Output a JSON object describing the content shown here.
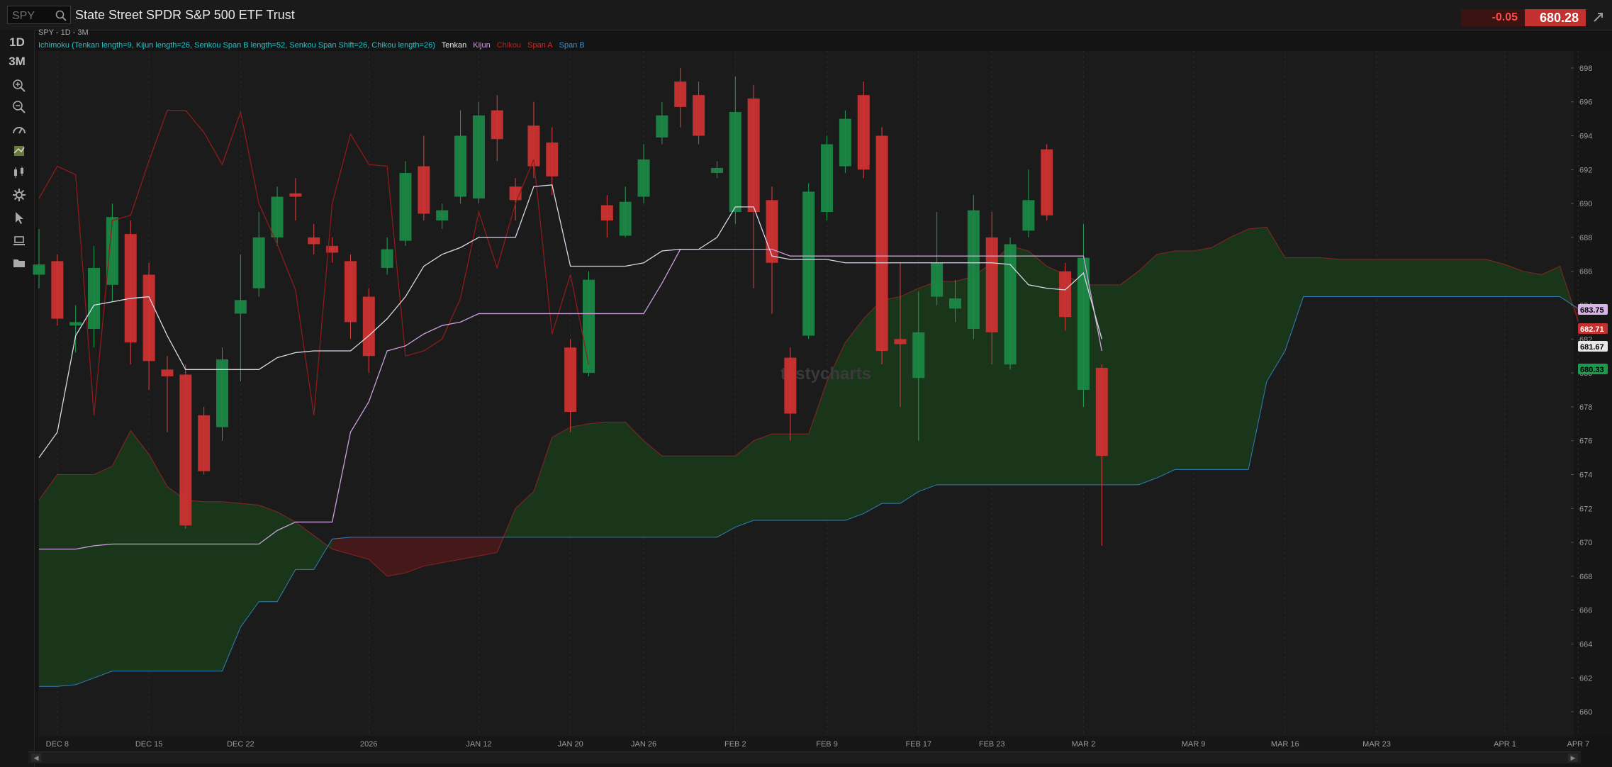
{
  "header": {
    "search_placeholder": "SPY",
    "title": "State Street SPDR S&P 500 ETF Trust",
    "change": "-0.05",
    "price": "680.28"
  },
  "sidebar": {
    "timeframes": [
      "1D",
      "3M"
    ],
    "icons": [
      "zoom-in-icon",
      "zoom-out-icon",
      "drawing-tools-icon",
      "studies-icon",
      "chart-style-icon",
      "settings-icon",
      "cursor-icon",
      "layers-icon",
      "folder-icon"
    ]
  },
  "chart_meta": "SPY - 1D - 3M",
  "legend": {
    "study": "Ichimoku (Tenkan length=9, Kijun length=26, Senkou Span B length=52, Senkou Span Shift=26, Chikou length=26)",
    "items": [
      {
        "label": "Tenkan",
        "color": "#e8e8e8"
      },
      {
        "label": "Kijun",
        "color": "#c9a0dc"
      },
      {
        "label": "Chikou",
        "color": "#b02222"
      },
      {
        "label": "Span A",
        "color": "#c03030"
      },
      {
        "label": "Span B",
        "color": "#3a8fd0"
      }
    ]
  },
  "watermark": "tastycharts",
  "price_tags": [
    {
      "value": "683.75",
      "bg": "#d9b3e8",
      "fg": "#000000"
    },
    {
      "value": "682.71",
      "bg": "#c4302e",
      "fg": "#ffffff"
    },
    {
      "value": "681.67",
      "bg": "#e8e8e8",
      "fg": "#000000"
    },
    {
      "value": "680.33",
      "bg": "#1a9a4a",
      "fg": "#000000"
    }
  ],
  "colors": {
    "up": "#1a8a45",
    "down": "#d03232",
    "cloud_bull": "#1b3a1b",
    "cloud_bear": "#4a1a1a"
  },
  "chart_data": {
    "type": "candlestick",
    "ylim": [
      659,
      699
    ],
    "y_ticks": [
      660,
      662,
      664,
      666,
      668,
      670,
      672,
      674,
      676,
      678,
      680,
      682,
      684,
      686,
      688,
      690,
      692,
      694,
      696,
      698
    ],
    "x_ticks": [
      {
        "label": "DEC 8",
        "i": 1
      },
      {
        "label": "DEC 15",
        "i": 6
      },
      {
        "label": "DEC 22",
        "i": 11
      },
      {
        "label": "2026",
        "i": 18
      },
      {
        "label": "JAN 12",
        "i": 24
      },
      {
        "label": "JAN 20",
        "i": 29
      },
      {
        "label": "JAN 26",
        "i": 33
      },
      {
        "label": "FEB 2",
        "i": 38
      },
      {
        "label": "FEB 9",
        "i": 43
      },
      {
        "label": "FEB 17",
        "i": 48
      },
      {
        "label": "FEB 23",
        "i": 52
      },
      {
        "label": "MAR 2",
        "i": 57
      },
      {
        "label": "MAR 9",
        "i": 63
      },
      {
        "label": "MAR 16",
        "i": 68
      },
      {
        "label": "MAR 23",
        "i": 73
      },
      {
        "label": "APR 1",
        "i": 80
      },
      {
        "label": "APR 7",
        "i": 84
      }
    ],
    "candles": [
      [
        685.8,
        686.4,
        688.5,
        685.0
      ],
      [
        686.6,
        683.2,
        687.0,
        682.8
      ],
      [
        682.8,
        683.0,
        684.0,
        681.2
      ],
      [
        682.6,
        686.2,
        687.5,
        681.5
      ],
      [
        685.2,
        689.2,
        690.0,
        684.2
      ],
      [
        688.2,
        681.8,
        689.0,
        680.5
      ],
      [
        685.8,
        680.7,
        686.5,
        679.0
      ],
      [
        680.2,
        679.8,
        681.0,
        676.5
      ],
      [
        679.9,
        671.0,
        680.5,
        670.8
      ],
      [
        677.5,
        674.2,
        678.0,
        674.0
      ],
      [
        676.8,
        680.8,
        681.5,
        676.0
      ],
      [
        683.5,
        684.3,
        687.0,
        679.5
      ],
      [
        685.0,
        688.0,
        689.5,
        684.5
      ],
      [
        688.0,
        690.4,
        691.0,
        687.5
      ],
      [
        690.6,
        690.4,
        691.5,
        689.0
      ],
      [
        688.0,
        687.6,
        688.8,
        687.0
      ],
      [
        687.5,
        687.1,
        688.0,
        686.5
      ],
      [
        686.6,
        683.0,
        687.0,
        682.0
      ],
      [
        684.5,
        681.0,
        685.0,
        680.0
      ],
      [
        686.2,
        687.3,
        688.0,
        685.8
      ],
      [
        687.8,
        691.8,
        692.5,
        687.5
      ],
      [
        692.2,
        689.4,
        694.0,
        689.0
      ],
      [
        689.0,
        689.6,
        690.0,
        688.5
      ],
      [
        690.4,
        694.0,
        695.5,
        690.0
      ],
      [
        690.3,
        695.2,
        696.0,
        690.0
      ],
      [
        695.5,
        693.8,
        696.4,
        692.5
      ],
      [
        691.0,
        690.2,
        691.5,
        689.0
      ],
      [
        694.6,
        692.2,
        696.0,
        691.5
      ],
      [
        693.6,
        691.6,
        694.5,
        690.5
      ],
      [
        681.5,
        677.7,
        682.0,
        676.5
      ],
      [
        680.0,
        685.5,
        686.0,
        679.8
      ],
      [
        689.9,
        689.0,
        690.5,
        688.0
      ],
      [
        688.1,
        690.1,
        691.0,
        688.0
      ],
      [
        690.4,
        692.6,
        693.5,
        690.0
      ],
      [
        693.9,
        695.2,
        696.0,
        693.5
      ],
      [
        697.2,
        695.7,
        698.0,
        694.5
      ],
      [
        696.4,
        694.0,
        697.2,
        693.5
      ],
      [
        691.8,
        692.1,
        692.5,
        691.5
      ],
      [
        689.5,
        695.4,
        697.5,
        688.8
      ],
      [
        696.2,
        689.5,
        697.0,
        685.0
      ],
      [
        690.2,
        686.5,
        691.0,
        683.5
      ],
      [
        680.9,
        677.6,
        681.5,
        676.0
      ],
      [
        682.2,
        690.7,
        691.2,
        682.0
      ],
      [
        689.5,
        693.5,
        694.0,
        689.0
      ],
      [
        692.2,
        695.0,
        695.5,
        691.8
      ],
      [
        696.4,
        692.0,
        697.2,
        691.5
      ],
      [
        694.0,
        681.3,
        694.5,
        680.5
      ],
      [
        682.0,
        681.7,
        686.5,
        678.0
      ],
      [
        679.7,
        682.4,
        684.8,
        676.0
      ],
      [
        684.5,
        686.5,
        689.5,
        684.0
      ],
      [
        683.8,
        684.4,
        685.5,
        683.0
      ],
      [
        682.6,
        689.6,
        690.5,
        682.0
      ],
      [
        688.0,
        682.4,
        689.5,
        680.5
      ],
      [
        680.5,
        687.6,
        688.0,
        680.2
      ],
      [
        688.4,
        690.2,
        692.0,
        688.0
      ],
      [
        693.2,
        689.3,
        693.5,
        689.0
      ],
      [
        686.0,
        683.3,
        686.5,
        682.5
      ],
      [
        679.0,
        686.8,
        688.8,
        678.0
      ],
      [
        680.3,
        675.1,
        680.5,
        669.8
      ]
    ],
    "tenkan": [
      [
        0,
        675
      ],
      [
        1,
        676.5
      ],
      [
        2,
        682.2
      ],
      [
        3,
        684.0
      ],
      [
        4,
        684.2
      ],
      [
        5,
        684.4
      ],
      [
        6,
        684.5
      ],
      [
        7,
        682.2
      ],
      [
        8,
        680.2
      ],
      [
        12,
        680.2
      ],
      [
        13,
        680.9
      ],
      [
        14,
        681.2
      ],
      [
        15,
        681.3
      ],
      [
        16,
        681.3
      ],
      [
        17,
        681.3
      ],
      [
        18,
        682.2
      ],
      [
        19,
        683.2
      ],
      [
        20,
        684.5
      ],
      [
        21,
        686.3
      ],
      [
        22,
        687.0
      ],
      [
        23,
        687.4
      ],
      [
        24,
        688.0
      ],
      [
        25,
        688.0
      ],
      [
        26,
        688.0
      ],
      [
        27,
        691.0
      ],
      [
        28,
        691.1
      ],
      [
        29,
        686.3
      ],
      [
        30,
        686.3
      ],
      [
        31,
        686.3
      ],
      [
        32,
        686.3
      ],
      [
        33,
        686.5
      ],
      [
        34,
        687.2
      ],
      [
        35,
        687.3
      ],
      [
        36,
        687.3
      ],
      [
        37,
        688.0
      ],
      [
        38,
        689.8
      ],
      [
        39,
        689.8
      ],
      [
        40,
        686.9
      ],
      [
        41,
        686.7
      ],
      [
        42,
        686.7
      ],
      [
        43,
        686.7
      ],
      [
        44,
        686.5
      ],
      [
        45,
        686.5
      ],
      [
        46,
        686.5
      ],
      [
        47,
        686.5
      ],
      [
        48,
        686.5
      ],
      [
        49,
        686.5
      ],
      [
        50,
        686.5
      ],
      [
        51,
        686.5
      ],
      [
        52,
        686.5
      ],
      [
        53,
        686.4
      ],
      [
        54,
        685.2
      ],
      [
        55,
        685.0
      ],
      [
        56,
        684.9
      ],
      [
        57,
        685.9
      ],
      [
        58,
        682.0
      ]
    ],
    "kijun": [
      [
        0,
        669.6
      ],
      [
        1,
        669.6
      ],
      [
        2,
        669.6
      ],
      [
        3,
        669.8
      ],
      [
        4,
        669.9
      ],
      [
        5,
        669.9
      ],
      [
        8,
        669.9
      ],
      [
        12,
        669.9
      ],
      [
        13,
        670.7
      ],
      [
        14,
        671.2
      ],
      [
        15,
        671.2
      ],
      [
        16,
        671.2
      ],
      [
        17,
        676.5
      ],
      [
        18,
        678.3
      ],
      [
        19,
        681.3
      ],
      [
        20,
        681.6
      ],
      [
        21,
        682.3
      ],
      [
        22,
        682.8
      ],
      [
        23,
        683.0
      ],
      [
        24,
        683.5
      ],
      [
        25,
        683.5
      ],
      [
        30,
        683.5
      ],
      [
        33,
        683.5
      ],
      [
        34,
        685.3
      ],
      [
        35,
        687.3
      ],
      [
        40,
        687.3
      ],
      [
        41,
        686.9
      ],
      [
        56,
        686.9
      ],
      [
        57,
        686.9
      ],
      [
        58,
        681.3
      ]
    ],
    "chikou": [
      [
        0,
        690.3
      ],
      [
        1,
        692.2
      ],
      [
        2,
        691.7
      ],
      [
        3,
        677.5
      ],
      [
        4,
        689.0
      ],
      [
        5,
        689.3
      ],
      [
        6,
        692.5
      ],
      [
        7,
        695.5
      ],
      [
        8,
        695.5
      ],
      [
        9,
        694.2
      ],
      [
        10,
        692.3
      ],
      [
        11,
        695.4
      ],
      [
        12,
        690.0
      ],
      [
        13,
        687.6
      ],
      [
        14,
        684.9
      ],
      [
        15,
        677.5
      ],
      [
        16,
        690.0
      ],
      [
        17,
        694.1
      ],
      [
        18,
        692.3
      ],
      [
        19,
        692.2
      ],
      [
        20,
        681.0
      ],
      [
        21,
        681.3
      ],
      [
        22,
        682.0
      ],
      [
        23,
        684.4
      ],
      [
        24,
        689.5
      ],
      [
        25,
        686.2
      ],
      [
        26,
        690.0
      ],
      [
        27,
        692.6
      ],
      [
        28,
        682.3
      ],
      [
        29,
        685.8
      ],
      [
        30,
        680.5
      ]
    ],
    "span_a": [
      [
        0,
        672.5
      ],
      [
        1,
        674.0
      ],
      [
        2,
        674.0
      ],
      [
        3,
        674.0
      ],
      [
        4,
        674.5
      ],
      [
        5,
        676.6
      ],
      [
        6,
        675.2
      ],
      [
        7,
        673.3
      ],
      [
        8,
        672.5
      ],
      [
        9,
        672.4
      ],
      [
        10,
        672.4
      ],
      [
        11,
        672.3
      ],
      [
        12,
        672.2
      ],
      [
        13,
        671.8
      ],
      [
        14,
        671.2
      ],
      [
        15,
        670.4
      ],
      [
        16,
        669.6
      ],
      [
        17,
        669.3
      ],
      [
        18,
        669.0
      ],
      [
        19,
        668.0
      ],
      [
        20,
        668.2
      ],
      [
        21,
        668.6
      ],
      [
        22,
        668.8
      ],
      [
        23,
        669.0
      ],
      [
        24,
        669.2
      ],
      [
        25,
        669.4
      ],
      [
        26,
        672.0
      ],
      [
        27,
        673.0
      ],
      [
        28,
        676.2
      ],
      [
        29,
        676.8
      ],
      [
        30,
        677.0
      ],
      [
        31,
        677.1
      ],
      [
        32,
        677.1
      ],
      [
        33,
        676.0
      ],
      [
        34,
        675.1
      ],
      [
        35,
        675.1
      ],
      [
        36,
        675.1
      ],
      [
        37,
        675.1
      ],
      [
        38,
        675.1
      ],
      [
        39,
        676.0
      ],
      [
        40,
        676.4
      ],
      [
        41,
        676.4
      ],
      [
        42,
        676.4
      ],
      [
        43,
        679.5
      ],
      [
        44,
        681.8
      ],
      [
        45,
        683.2
      ],
      [
        46,
        684.3
      ],
      [
        47,
        684.5
      ],
      [
        48,
        685.0
      ],
      [
        49,
        685.4
      ],
      [
        50,
        685.4
      ],
      [
        51,
        685.7
      ],
      [
        52,
        686.5
      ],
      [
        53,
        687.5
      ],
      [
        54,
        687.2
      ],
      [
        55,
        686.3
      ],
      [
        56,
        685.8
      ],
      [
        57,
        685.2
      ],
      [
        58,
        685.2
      ],
      [
        59,
        685.2
      ],
      [
        60,
        686.0
      ],
      [
        61,
        687.0
      ],
      [
        62,
        687.2
      ],
      [
        63,
        687.2
      ],
      [
        64,
        687.4
      ],
      [
        65,
        688.0
      ],
      [
        66,
        688.5
      ],
      [
        67,
        688.6
      ],
      [
        68,
        686.8
      ],
      [
        69,
        686.8
      ],
      [
        70,
        686.8
      ],
      [
        71,
        686.7
      ],
      [
        78,
        686.7
      ],
      [
        79,
        686.7
      ],
      [
        80,
        686.4
      ],
      [
        81,
        686.0
      ],
      [
        82,
        685.8
      ],
      [
        83,
        686.3
      ],
      [
        84,
        683.0
      ]
    ],
    "span_b": [
      [
        0,
        661.5
      ],
      [
        1,
        661.5
      ],
      [
        2,
        661.6
      ],
      [
        3,
        662.0
      ],
      [
        4,
        662.4
      ],
      [
        5,
        662.4
      ],
      [
        10,
        662.4
      ],
      [
        11,
        665.0
      ],
      [
        12,
        666.5
      ],
      [
        13,
        666.5
      ],
      [
        14,
        668.4
      ],
      [
        15,
        668.4
      ],
      [
        16,
        670.2
      ],
      [
        17,
        670.3
      ],
      [
        18,
        670.3
      ],
      [
        37,
        670.3
      ],
      [
        38,
        670.9
      ],
      [
        39,
        671.3
      ],
      [
        40,
        671.3
      ],
      [
        41,
        671.3
      ],
      [
        42,
        671.3
      ],
      [
        43,
        671.3
      ],
      [
        44,
        671.3
      ],
      [
        45,
        671.7
      ],
      [
        46,
        672.3
      ],
      [
        47,
        672.3
      ],
      [
        48,
        673.0
      ],
      [
        49,
        673.4
      ],
      [
        50,
        673.4
      ],
      [
        58,
        673.4
      ],
      [
        59,
        673.4
      ],
      [
        60,
        673.4
      ],
      [
        61,
        673.8
      ],
      [
        62,
        674.3
      ],
      [
        63,
        674.3
      ],
      [
        66,
        674.3
      ],
      [
        67,
        679.5
      ],
      [
        68,
        681.3
      ],
      [
        69,
        684.5
      ],
      [
        70,
        684.5
      ],
      [
        82,
        684.5
      ],
      [
        83,
        684.5
      ],
      [
        84,
        683.8
      ]
    ]
  }
}
